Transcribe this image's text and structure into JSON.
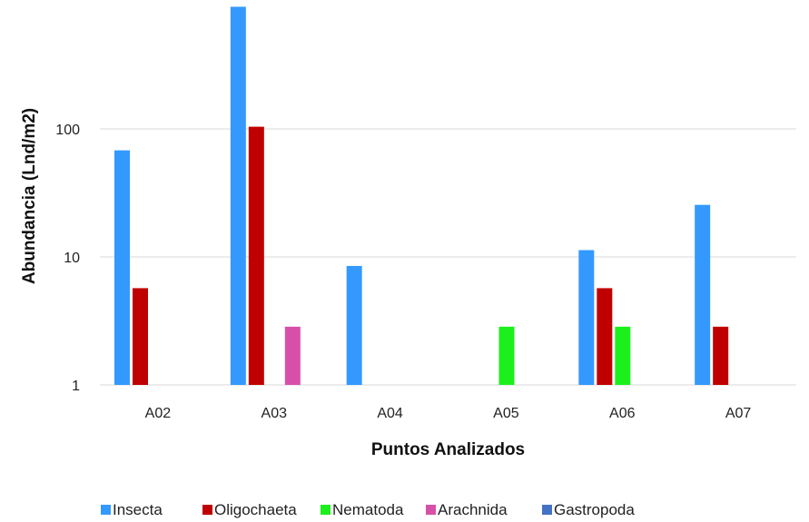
{
  "chart_data": {
    "type": "bar",
    "categories": [
      "A02",
      "A03",
      "A04",
      "A05",
      "A06",
      "A07"
    ],
    "series": [
      {
        "name": "Insecta",
        "values": [
          68,
          900,
          8.5,
          null,
          11.3,
          25.5
        ]
      },
      {
        "name": "Oligochaeta",
        "values": [
          5.7,
          104,
          null,
          null,
          5.7,
          2.85
        ]
      },
      {
        "name": "Nematoda",
        "values": [
          null,
          null,
          null,
          2.85,
          2.85,
          null
        ]
      },
      {
        "name": "Arachnida",
        "values": [
          null,
          2.85,
          null,
          null,
          null,
          null
        ]
      },
      {
        "name": "Gastropoda",
        "values": [
          null,
          null,
          null,
          null,
          null,
          null
        ]
      }
    ],
    "colors": [
      "#3399ff",
      "#c00000",
      "#1cf01c",
      "#d84fa9",
      "#4472c4"
    ],
    "xlabel": "Puntos Analizados",
    "ylabel": "Abundancia (Lnd/m2)",
    "yscale": "log",
    "ylim": [
      1,
      900
    ],
    "yticks": [
      1,
      10,
      100
    ],
    "grid": true,
    "legend": "bottom"
  }
}
